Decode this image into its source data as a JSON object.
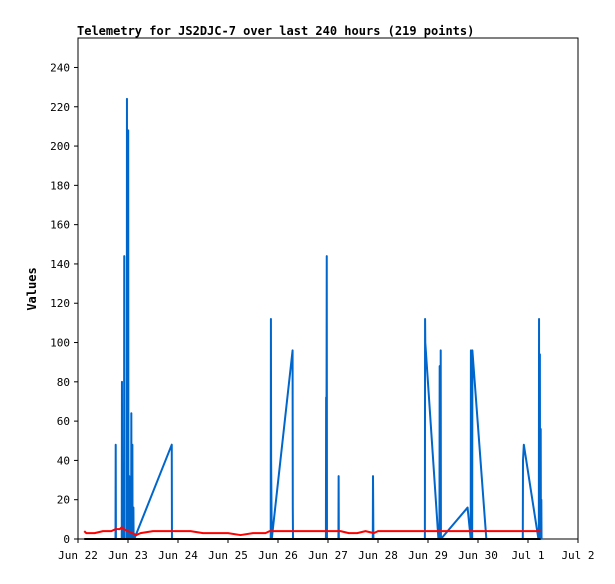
{
  "chart_data": {
    "type": "line",
    "title": "Telemetry for JS2DJC-7 over last 240 hours (219 points)",
    "xlabel": "",
    "ylabel": "Values",
    "xlim": [
      0,
      240
    ],
    "ylim": [
      0,
      255
    ],
    "grid": false,
    "x_ticks": [
      {
        "x": 0,
        "label": "Jun 22"
      },
      {
        "x": 24,
        "label": "Jun 23"
      },
      {
        "x": 48,
        "label": "Jun 24"
      },
      {
        "x": 72,
        "label": "Jun 25"
      },
      {
        "x": 96,
        "label": "Jun 26"
      },
      {
        "x": 120,
        "label": "Jun 27"
      },
      {
        "x": 144,
        "label": "Jun 28"
      },
      {
        "x": 168,
        "label": "Jun 29"
      },
      {
        "x": 192,
        "label": "Jun 30"
      },
      {
        "x": 216,
        "label": "Jul 1"
      },
      {
        "x": 240,
        "label": "Jul 2"
      }
    ],
    "y_ticks": [
      0,
      20,
      40,
      60,
      80,
      100,
      120,
      140,
      160,
      180,
      200,
      220,
      240
    ],
    "series": [
      {
        "color": "#0066cc",
        "points": [
          [
            18.0,
            0
          ],
          [
            18.1,
            48
          ],
          [
            18.2,
            0
          ],
          [
            21.0,
            0
          ],
          [
            21.1,
            80
          ],
          [
            21.2,
            0
          ],
          [
            22.0,
            0
          ],
          [
            22.1,
            16
          ],
          [
            22.2,
            144
          ],
          [
            22.3,
            0
          ],
          [
            23.4,
            0
          ],
          [
            23.5,
            224
          ],
          [
            23.6,
            0
          ],
          [
            24.0,
            0
          ],
          [
            24.1,
            208
          ],
          [
            24.2,
            0
          ],
          [
            24.5,
            0
          ],
          [
            24.6,
            32
          ],
          [
            24.7,
            0
          ],
          [
            24.8,
            16
          ],
          [
            24.9,
            0
          ],
          [
            25.5,
            0
          ],
          [
            25.6,
            64
          ],
          [
            25.7,
            0
          ],
          [
            26.0,
            0
          ],
          [
            26.1,
            48
          ],
          [
            26.2,
            0
          ],
          [
            26.5,
            0
          ],
          [
            26.6,
            16
          ],
          [
            26.7,
            0
          ],
          [
            27.0,
            0
          ],
          [
            45.0,
            48
          ],
          [
            45.1,
            0
          ],
          [
            45.5,
            0
          ],
          [
            92.5,
            0
          ],
          [
            92.6,
            112
          ],
          [
            92.7,
            40
          ],
          [
            93.0,
            0
          ],
          [
            103.0,
            96
          ],
          [
            103.1,
            16
          ],
          [
            103.2,
            0
          ],
          [
            119.0,
            0
          ],
          [
            119.1,
            72
          ],
          [
            119.2,
            0
          ],
          [
            119.4,
            144
          ],
          [
            119.5,
            0
          ],
          [
            125.0,
            0
          ],
          [
            125.1,
            32
          ],
          [
            125.2,
            0
          ],
          [
            141.5,
            0
          ],
          [
            141.6,
            32
          ],
          [
            141.7,
            16
          ],
          [
            141.8,
            0
          ],
          [
            166.5,
            0
          ],
          [
            166.6,
            112
          ],
          [
            166.7,
            100
          ],
          [
            173.0,
            0
          ],
          [
            173.5,
            0
          ],
          [
            173.6,
            88
          ],
          [
            173.7,
            0
          ],
          [
            174.0,
            0
          ],
          [
            174.1,
            96
          ],
          [
            174.2,
            0
          ],
          [
            187.0,
            16
          ],
          [
            188.5,
            0
          ],
          [
            188.6,
            96
          ],
          [
            188.7,
            40
          ],
          [
            188.8,
            0
          ],
          [
            189.2,
            0
          ],
          [
            189.3,
            96
          ],
          [
            196.0,
            0
          ],
          [
            213.5,
            0
          ],
          [
            213.6,
            40
          ],
          [
            214.0,
            48
          ],
          [
            221.0,
            0
          ],
          [
            221.2,
            0
          ],
          [
            221.3,
            112
          ],
          [
            221.4,
            0
          ],
          [
            221.6,
            0
          ],
          [
            221.7,
            94
          ],
          [
            221.8,
            0
          ],
          [
            222.0,
            0
          ],
          [
            222.1,
            56
          ],
          [
            222.2,
            0
          ],
          [
            222.4,
            20
          ],
          [
            222.5,
            0
          ]
        ]
      },
      {
        "color": "#ff0000",
        "points": [
          [
            3,
            4
          ],
          [
            4,
            3
          ],
          [
            8,
            3
          ],
          [
            12,
            4
          ],
          [
            16,
            4
          ],
          [
            18,
            5
          ],
          [
            20,
            5
          ],
          [
            21,
            6
          ],
          [
            22,
            5
          ],
          [
            24,
            4
          ],
          [
            26,
            3
          ],
          [
            28,
            2
          ],
          [
            30,
            3
          ],
          [
            36,
            4
          ],
          [
            42,
            4
          ],
          [
            48,
            4
          ],
          [
            54,
            4
          ],
          [
            60,
            3
          ],
          [
            66,
            3
          ],
          [
            72,
            3
          ],
          [
            78,
            2
          ],
          [
            84,
            3
          ],
          [
            90,
            3
          ],
          [
            92,
            4
          ],
          [
            96,
            4
          ],
          [
            102,
            4
          ],
          [
            108,
            4
          ],
          [
            114,
            4
          ],
          [
            120,
            4
          ],
          [
            126,
            4
          ],
          [
            130,
            3
          ],
          [
            134,
            3
          ],
          [
            138,
            4
          ],
          [
            142,
            3
          ],
          [
            144,
            4
          ],
          [
            150,
            4
          ],
          [
            156,
            4
          ],
          [
            162,
            4
          ],
          [
            168,
            4
          ],
          [
            174,
            4
          ],
          [
            180,
            4
          ],
          [
            186,
            4
          ],
          [
            192,
            4
          ],
          [
            198,
            4
          ],
          [
            204,
            4
          ],
          [
            210,
            4
          ],
          [
            216,
            4
          ],
          [
            222,
            4
          ]
        ]
      },
      {
        "color": "#000000",
        "points": [
          [
            3,
            0
          ],
          [
            222,
            0
          ]
        ]
      }
    ]
  }
}
